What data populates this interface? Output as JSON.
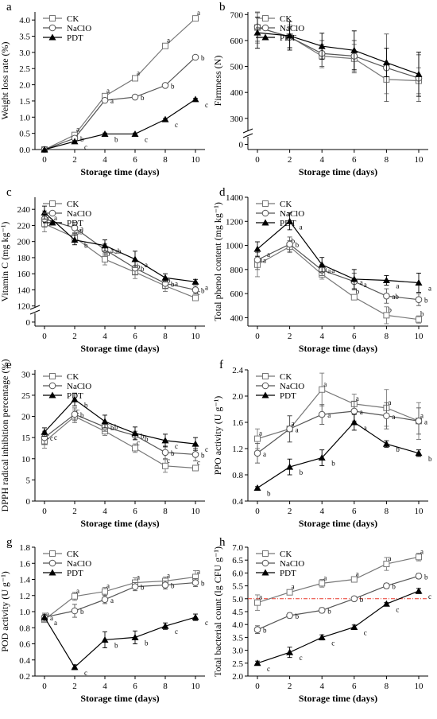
{
  "chart_data": [
    {
      "panel": "a",
      "type": "line",
      "xlabel": "Storage time (days)",
      "ylabel": "Weight loss rate (%)",
      "x": [
        0,
        2,
        4,
        6,
        8,
        10
      ],
      "xticks": [
        0,
        2,
        4,
        6,
        8,
        10
      ],
      "ylim": [
        0,
        4.25
      ],
      "yticks": [
        0.0,
        0.5,
        1.0,
        1.5,
        2.0,
        2.5,
        3.0,
        3.5,
        4.0
      ],
      "ytick_labels": [
        "0.0",
        "0.5",
        "1.0",
        "1.5",
        "2.0",
        "2.5",
        "3.0",
        "3.5",
        "4.0"
      ],
      "ybreak": false,
      "legend_position": "top-left",
      "series": [
        {
          "name": "CK",
          "marker": "square",
          "color": "#777777",
          "values": [
            0,
            0.45,
            1.65,
            2.2,
            3.2,
            4.05
          ],
          "errors": [
            0,
            0.03,
            0.05,
            0.05,
            0.05,
            0.05
          ],
          "letters": [
            "",
            "a",
            "a",
            "a",
            "a",
            "a"
          ]
        },
        {
          "name": "NaClO",
          "marker": "circle",
          "color": "#555555",
          "values": [
            0,
            0.35,
            1.52,
            1.62,
            1.98,
            2.85
          ],
          "errors": [
            0,
            0.03,
            0.05,
            0.05,
            0.05,
            0.05
          ],
          "letters": [
            "",
            "b",
            "a",
            "b",
            "b",
            "b"
          ]
        },
        {
          "name": "PDT",
          "marker": "triangle",
          "color": "#000000",
          "values": [
            0,
            0.25,
            0.48,
            0.48,
            0.93,
            1.55
          ],
          "errors": [
            0,
            0.02,
            0.03,
            0.03,
            0.03,
            0.03
          ],
          "letters": [
            "",
            "c",
            "b",
            "c",
            "c",
            "c"
          ]
        }
      ]
    },
    {
      "panel": "b",
      "type": "line",
      "xlabel": "Storage time (days)",
      "ylabel": "Firmness (N)",
      "x": [
        0,
        2,
        4,
        6,
        8,
        10
      ],
      "xticks": [
        0,
        2,
        4,
        6,
        8,
        10
      ],
      "ylim": [
        180,
        710
      ],
      "yticks": [
        300,
        400,
        500,
        600,
        700
      ],
      "ytick_labels": [
        "300",
        "400",
        "500",
        "600",
        "700"
      ],
      "ybreak": true,
      "break_tick": 200,
      "break_tick_label": "0",
      "legend_position": "top-left",
      "series": [
        {
          "name": "CK",
          "marker": "square",
          "color": "#777777",
          "values": [
            650,
            615,
            540,
            530,
            450,
            445
          ],
          "errors": [
            60,
            45,
            45,
            55,
            55,
            50
          ],
          "letters": []
        },
        {
          "name": "NaClO",
          "marker": "circle",
          "color": "#555555",
          "values": [
            652,
            613,
            550,
            540,
            495,
            455
          ],
          "errors": [
            55,
            40,
            50,
            60,
            130,
            90
          ],
          "letters": []
        },
        {
          "name": "PDT",
          "marker": "triangle",
          "color": "#000000",
          "values": [
            630,
            618,
            578,
            562,
            515,
            470
          ],
          "errors": [
            60,
            55,
            50,
            75,
            55,
            85
          ],
          "letters": []
        }
      ]
    },
    {
      "panel": "c",
      "type": "line",
      "xlabel": "Storage time (days)",
      "ylabel": "Vitamin C (mg kg⁻¹)",
      "x": [
        0,
        2,
        4,
        6,
        8,
        10
      ],
      "xticks": [
        0,
        2,
        4,
        6,
        8,
        10
      ],
      "ylim": [
        95,
        255
      ],
      "yticks": [
        120,
        140,
        160,
        180,
        200,
        220,
        240
      ],
      "ytick_labels": [
        "120",
        "140",
        "160",
        "180",
        "200",
        "220",
        "240"
      ],
      "ybreak": true,
      "break_tick": 100,
      "break_tick_label": "0",
      "legend_position": "top-left",
      "series": [
        {
          "name": "CK",
          "marker": "square",
          "color": "#777777",
          "values": [
            222,
            205,
            178,
            162,
            145,
            130
          ],
          "errors": [
            10,
            6,
            7,
            8,
            7,
            3
          ],
          "letters": [
            "a",
            "ab",
            "b",
            "b",
            "b",
            "c"
          ]
        },
        {
          "name": "NaClO",
          "marker": "circle",
          "color": "#555555",
          "values": [
            228,
            217,
            190,
            167,
            148,
            140
          ],
          "errors": [
            10,
            7,
            7,
            8,
            6,
            5
          ],
          "letters": [
            "a",
            "a",
            "a",
            "b",
            "b",
            "b"
          ]
        },
        {
          "name": "PDT",
          "marker": "triangle",
          "color": "#000000",
          "values": [
            236,
            202,
            195,
            178,
            155,
            150
          ],
          "errors": [
            8,
            6,
            7,
            10,
            5,
            3
          ],
          "letters": [
            "a",
            "b",
            "ab",
            "a",
            "a",
            "a"
          ]
        }
      ]
    },
    {
      "panel": "d",
      "type": "line",
      "xlabel": "Storage time (days)",
      "ylabel": "Total phenol content (mg kg⁻¹)",
      "x": [
        0,
        2,
        4,
        6,
        8,
        10
      ],
      "xticks": [
        0,
        2,
        4,
        6,
        8,
        10
      ],
      "ylim": [
        330,
        1400
      ],
      "yticks": [
        400,
        600,
        800,
        1000,
        1200,
        1400
      ],
      "ytick_labels": [
        "400",
        "600",
        "800",
        "1000",
        "1200",
        "1400"
      ],
      "ybreak": false,
      "legend_position": "top-left",
      "series": [
        {
          "name": "CK",
          "marker": "square",
          "color": "#777777",
          "values": [
            840,
            990,
            760,
            570,
            420,
            385
          ],
          "errors": [
            100,
            50,
            40,
            20,
            70,
            30
          ],
          "letters": [
            "a",
            "b",
            "a",
            "b",
            "b",
            "b"
          ]
        },
        {
          "name": "NaClO",
          "marker": "circle",
          "color": "#555555",
          "values": [
            880,
            1010,
            795,
            700,
            580,
            550
          ],
          "errors": [
            80,
            60,
            45,
            70,
            60,
            50
          ],
          "letters": [
            "a",
            "b",
            "a",
            "a",
            "ab",
            "b"
          ]
        },
        {
          "name": "PDT",
          "marker": "triangle",
          "color": "#000000",
          "values": [
            970,
            1200,
            840,
            720,
            710,
            690
          ],
          "errors": [
            60,
            70,
            60,
            80,
            40,
            80
          ],
          "letters": [
            "a",
            "a",
            "a",
            "a",
            "a",
            "a"
          ]
        }
      ]
    },
    {
      "panel": "e",
      "type": "line",
      "xlabel": "Storage time (days)",
      "ylabel": "DPPH radical inhibition percentage (%)",
      "x": [
        0,
        2,
        4,
        6,
        8,
        10
      ],
      "xticks": [
        0,
        2,
        4,
        6,
        8,
        10
      ],
      "ylim": [
        0,
        31
      ],
      "yticks": [
        0,
        5,
        10,
        15,
        20,
        25,
        30
      ],
      "ytick_labels": [
        "0",
        "5",
        "10",
        "15",
        "20",
        "25",
        "30"
      ],
      "ybreak": false,
      "legend_position": "top-left",
      "series": [
        {
          "name": "CK",
          "marker": "square",
          "color": "#777777",
          "values": [
            14.0,
            20.0,
            16.5,
            12.5,
            8.3,
            7.8
          ],
          "errors": [
            1.5,
            1.5,
            1.0,
            1.0,
            1.5,
            0.5
          ],
          "letters": [
            "c",
            "c",
            "c",
            "c",
            "c",
            "c"
          ]
        },
        {
          "name": "NaClO",
          "marker": "circle",
          "color": "#555555",
          "values": [
            15.0,
            20.5,
            17.5,
            15.5,
            11.5,
            11.0
          ],
          "errors": [
            1.5,
            1.5,
            1.0,
            1.0,
            1.5,
            1.5
          ],
          "letters": [
            "c",
            "b",
            "b",
            "b",
            "b",
            "b"
          ]
        },
        {
          "name": "PDT",
          "marker": "triangle",
          "color": "#000000",
          "values": [
            16.3,
            24.0,
            18.8,
            16.0,
            14.3,
            13.5
          ],
          "errors": [
            1.0,
            1.5,
            1.5,
            1.5,
            1.5,
            1.5
          ],
          "letters": [
            "c",
            "b",
            "b",
            "b",
            "c",
            "c"
          ]
        }
      ]
    },
    {
      "panel": "f",
      "type": "line",
      "xlabel": "Storage time (days)",
      "ylabel": "PPO activity (U g⁻¹)",
      "x": [
        0,
        2,
        4,
        6,
        8,
        10
      ],
      "xticks": [
        0,
        2,
        4,
        6,
        8,
        10
      ],
      "ylim": [
        0.4,
        2.4
      ],
      "yticks": [
        0.4,
        0.8,
        1.2,
        1.6,
        2.0,
        2.4
      ],
      "ytick_labels": [
        "0.4",
        "0.8",
        "1.2",
        "1.6",
        "2.0",
        "2.4"
      ],
      "ybreak": false,
      "legend_position": "top-left",
      "series": [
        {
          "name": "CK",
          "marker": "square",
          "color": "#777777",
          "values": [
            1.35,
            1.5,
            2.1,
            1.88,
            1.82,
            1.62
          ],
          "errors": [
            0.15,
            0.2,
            0.25,
            0.15,
            0.28,
            0.28
          ],
          "letters": [
            "a",
            "a",
            "a",
            "a",
            "a",
            "a"
          ]
        },
        {
          "name": "NaClO",
          "marker": "circle",
          "color": "#555555",
          "values": [
            1.13,
            1.5,
            1.72,
            1.77,
            1.7,
            1.62
          ],
          "errors": [
            0.15,
            0.2,
            0.15,
            0.15,
            0.2,
            0.2
          ],
          "letters": [
            "a",
            "a",
            "a",
            "a",
            "a",
            "a"
          ]
        },
        {
          "name": "PDT",
          "marker": "triangle",
          "color": "#000000",
          "values": [
            0.6,
            0.92,
            1.06,
            1.6,
            1.27,
            1.13
          ],
          "errors": [
            0.02,
            0.12,
            0.12,
            0.12,
            0.05,
            0.05
          ],
          "letters": [
            "b",
            "b",
            "b",
            "a",
            "b",
            "b"
          ]
        }
      ]
    },
    {
      "panel": "g",
      "type": "line",
      "xlabel": "Storage time (days)",
      "ylabel": "POD activity (U g⁻¹)",
      "x": [
        0,
        2,
        4,
        6,
        8,
        10
      ],
      "xticks": [
        0,
        2,
        4,
        6,
        8,
        10
      ],
      "ylim": [
        0.2,
        1.8
      ],
      "yticks": [
        0.2,
        0.4,
        0.6,
        0.8,
        1.0,
        1.2,
        1.4,
        1.6,
        1.8
      ],
      "ytick_labels": [
        "0.2",
        "0.4",
        "0.6",
        "0.8",
        "1.0",
        "1.2",
        "1.4",
        "1.6",
        "1.8"
      ],
      "ybreak": false,
      "legend_position": "top-left",
      "series": [
        {
          "name": "CK",
          "marker": "square",
          "color": "#777777",
          "values": [
            0.9,
            1.19,
            1.25,
            1.36,
            1.38,
            1.43
          ],
          "errors": [
            0.03,
            0.05,
            0.05,
            0.06,
            0.05,
            0.08
          ],
          "letters": [
            "a",
            "a",
            "a",
            "a",
            "a",
            "a"
          ]
        },
        {
          "name": "NaClO",
          "marker": "circle",
          "color": "#555555",
          "values": [
            0.93,
            1.01,
            1.15,
            1.31,
            1.33,
            1.36
          ],
          "errors": [
            0.05,
            0.08,
            0.05,
            0.05,
            0.05,
            0.05
          ],
          "letters": [
            "a",
            "b",
            "a",
            "b",
            "b",
            "b"
          ]
        },
        {
          "name": "PDT",
          "marker": "triangle",
          "color": "#000000",
          "values": [
            0.93,
            0.31,
            0.65,
            0.68,
            0.82,
            0.93
          ],
          "errors": [
            0.03,
            0.03,
            0.1,
            0.08,
            0.04,
            0.04
          ],
          "letters": [
            "a",
            "c",
            "b",
            "b",
            "c",
            "c"
          ]
        }
      ]
    },
    {
      "panel": "h",
      "type": "line",
      "xlabel": "Storage time (days)",
      "ylabel": "Total bacterial count (lg CFU g⁻¹)",
      "x": [
        0,
        2,
        4,
        6,
        8,
        10
      ],
      "xticks": [
        0,
        2,
        4,
        6,
        8,
        10
      ],
      "ylim": [
        2.0,
        7.0
      ],
      "yticks": [
        2.0,
        2.5,
        3.0,
        3.5,
        4.0,
        4.5,
        5.0,
        5.5,
        6.0,
        6.5,
        7.0
      ],
      "ytick_labels": [
        "2.0",
        "2.5",
        "3.0",
        "3.5",
        "4.0",
        "4.5",
        "5.0",
        "5.5",
        "6.0",
        "6.5",
        "7.0"
      ],
      "ybreak": false,
      "reference_line": 5.0,
      "reference_color": "#e8392c",
      "legend_position": "top-left",
      "series": [
        {
          "name": "CK",
          "marker": "square",
          "color": "#777777",
          "values": [
            4.85,
            5.25,
            5.6,
            5.75,
            6.35,
            6.62
          ],
          "errors": [
            0.3,
            0.1,
            0.15,
            0.1,
            0.25,
            0.15
          ],
          "letters": [
            "a",
            "a",
            "a",
            "a",
            "a",
            "a"
          ]
        },
        {
          "name": "NaClO",
          "marker": "circle",
          "color": "#555555",
          "values": [
            3.8,
            4.35,
            4.55,
            5.0,
            5.5,
            5.88
          ],
          "errors": [
            0.15,
            0.1,
            0.1,
            0.08,
            0.1,
            0.1
          ],
          "letters": [
            "b",
            "b",
            "b",
            "b",
            "b",
            "b"
          ]
        },
        {
          "name": "PDT",
          "marker": "triangle",
          "color": "#000000",
          "values": [
            2.5,
            2.92,
            3.5,
            3.9,
            4.8,
            5.3
          ],
          "errors": [
            0.08,
            0.2,
            0.1,
            0.08,
            0.05,
            0.1
          ],
          "letters": [
            "c",
            "c",
            "c",
            "c",
            "c",
            "c"
          ]
        }
      ]
    }
  ]
}
